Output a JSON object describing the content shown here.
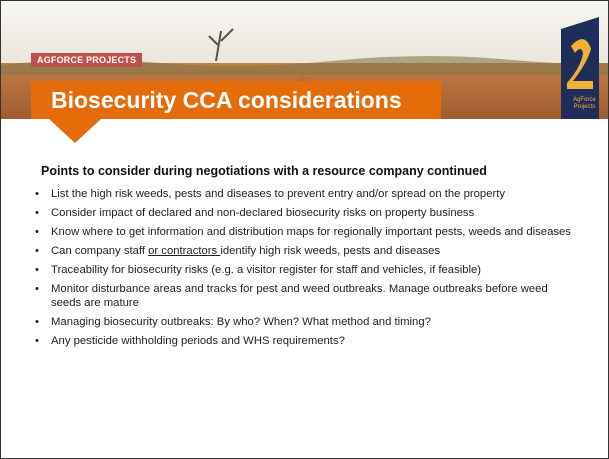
{
  "header": {
    "tag": "AGFORCE PROJECTS",
    "title": "Biosecurity CCA considerations",
    "logo_lines": [
      "AgForce",
      "Projects"
    ]
  },
  "subtitle": "Points to consider during negotiations with a resource company continued",
  "bullets": [
    "List the high risk weeds, pests and diseases to prevent entry and/or spread on the property",
    "Consider impact of declared and non-declared biosecurity risks on property business",
    "Know where to get information and distribution maps for regionally important pests, weeds and diseases",
    {
      "before": "Can company staff ",
      "underlined": "or contractors ",
      "after": "identify high risk weeds, pests and diseases"
    },
    "Traceability for biosecurity risks  (e.g. a visitor register for staff and vehicles, if feasible)",
    "Monitor disturbance areas and tracks for pest and weed outbreaks. Manage outbreaks before weed seeds are mature",
    "Managing biosecurity outbreaks: By who? When? What method and timing?",
    "Any pesticide withholding periods and WHS requirements?"
  ]
}
